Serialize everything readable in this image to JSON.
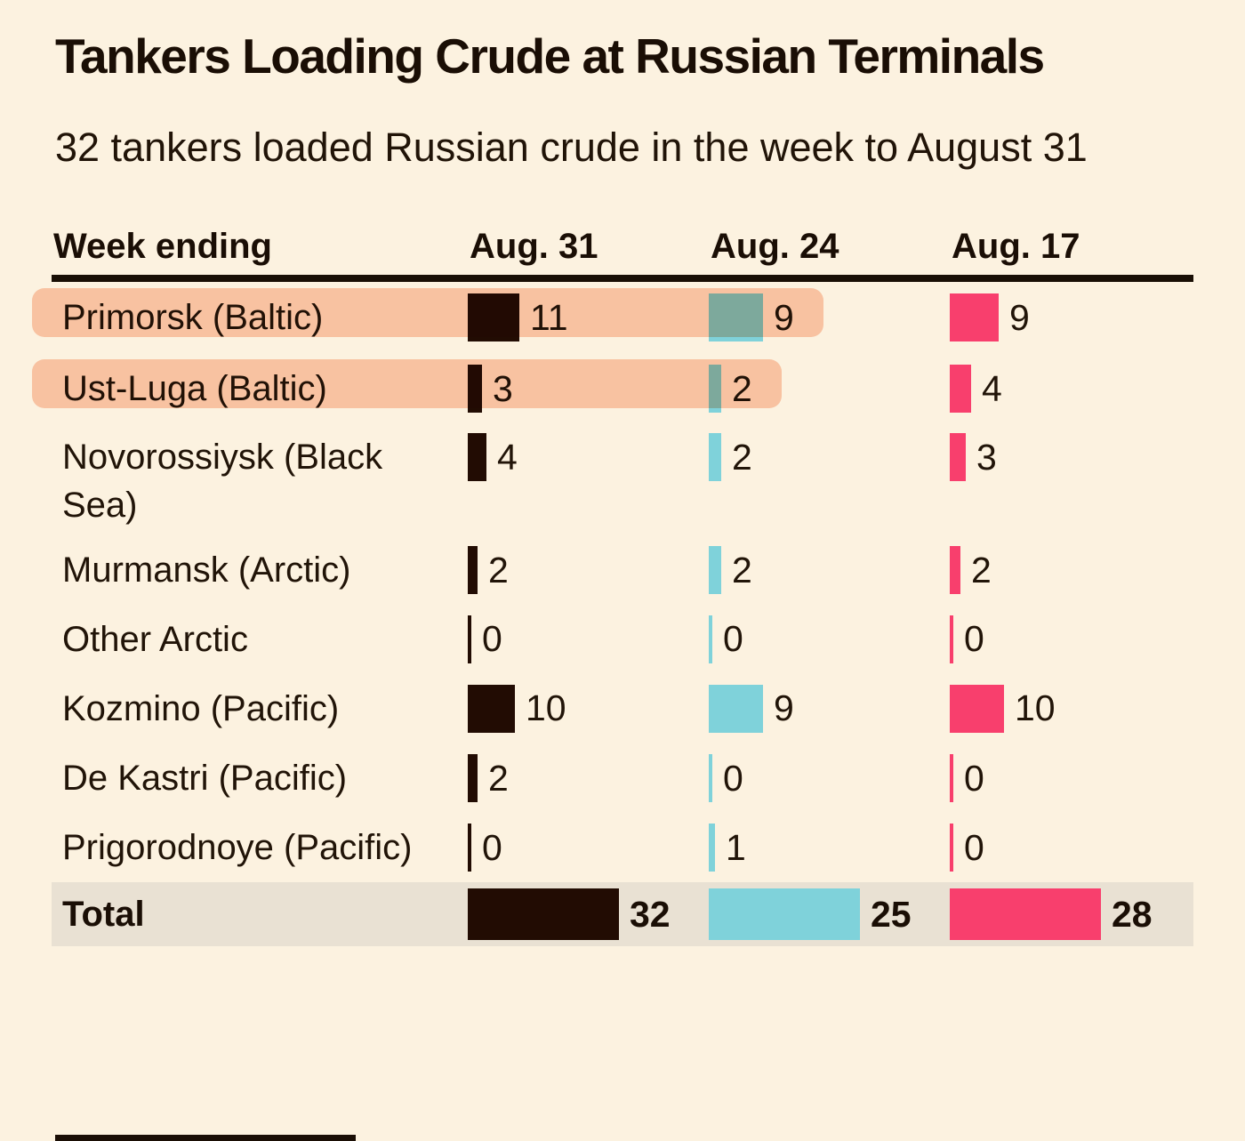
{
  "page": {
    "title": "Tankers Loading Crude at Russian Terminals",
    "subtitle": "32 tankers loaded Russian crude in the week to August 31"
  },
  "table": {
    "header": {
      "label": "Week ending",
      "columns": [
        "Aug. 31",
        "Aug. 24",
        "Aug. 17"
      ]
    },
    "rows": [
      {
        "label": "Primorsk (Baltic)",
        "values": [
          11,
          9,
          9
        ],
        "highlighted": true
      },
      {
        "label": "Ust-Luga (Baltic)",
        "values": [
          3,
          2,
          4
        ],
        "highlighted": true
      },
      {
        "label": "Novorossiysk (Black Sea)",
        "values": [
          4,
          2,
          3
        ],
        "highlighted": false
      },
      {
        "label": "Murmansk (Arctic)",
        "values": [
          2,
          2,
          2
        ],
        "highlighted": false
      },
      {
        "label": "Other Arctic",
        "values": [
          0,
          0,
          0
        ],
        "highlighted": false
      },
      {
        "label": "Kozmino (Pacific)",
        "values": [
          10,
          9,
          10
        ],
        "highlighted": false
      },
      {
        "label": "De Kastri (Pacific)",
        "values": [
          2,
          0,
          0
        ],
        "highlighted": false
      },
      {
        "label": "Prigorodnoye (Pacific)",
        "values": [
          0,
          1,
          0
        ],
        "highlighted": false
      }
    ],
    "total": {
      "label": "Total",
      "values": [
        32,
        25,
        28
      ]
    }
  },
  "chart_data": {
    "type": "bar",
    "title": "Tankers Loading Crude at Russian Terminals",
    "subtitle": "32 tankers loaded Russian crude in the week to August 31",
    "categories": [
      "Primorsk (Baltic)",
      "Ust-Luga (Baltic)",
      "Novorossiysk (Black Sea)",
      "Murmansk (Arctic)",
      "Other Arctic",
      "Kozmino (Pacific)",
      "De Kastri (Pacific)",
      "Prigorodnoye (Pacific)"
    ],
    "series": [
      {
        "name": "Aug. 31",
        "values": [
          11,
          3,
          4,
          2,
          0,
          10,
          2,
          0
        ],
        "total": 32,
        "color": "#220c03"
      },
      {
        "name": "Aug. 24",
        "values": [
          9,
          2,
          2,
          2,
          0,
          9,
          0,
          1
        ],
        "total": 25,
        "color": "#7fd2da"
      },
      {
        "name": "Aug. 17",
        "values": [
          9,
          4,
          3,
          2,
          0,
          10,
          0,
          0
        ],
        "total": 28,
        "color": "#f83f6d"
      }
    ],
    "row_axis_label": "Week ending",
    "highlighted_categories": [
      "Primorsk (Baltic)",
      "Ust-Luga (Baltic)"
    ],
    "bars_normalized_per_column": true,
    "legend_position": "column headers",
    "grid": false
  },
  "colors": {
    "background": "#fcf2e0",
    "ink": "#1a0e05",
    "bar_aug31": "#220c03",
    "bar_aug24": "#7fd2da",
    "bar_aug17": "#f83f6d",
    "highlight": "#fbcdb7",
    "total_row_background": "#e9e1d3",
    "header_rule": "#190f05"
  },
  "layout_row_heights": [
    80,
    80,
    125,
    78,
    77,
    79,
    78,
    78
  ]
}
